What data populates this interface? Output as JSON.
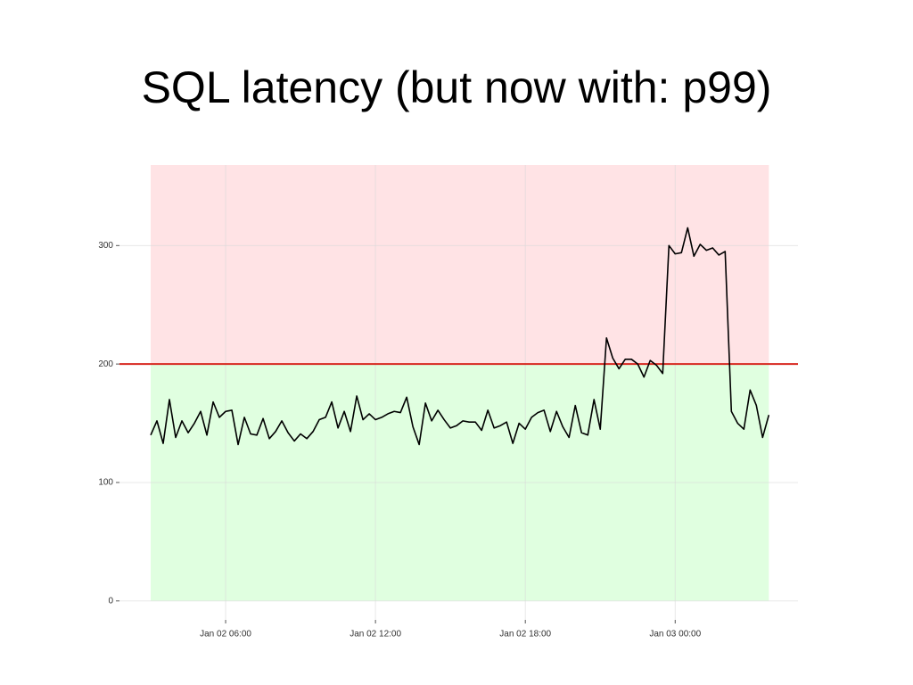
{
  "chart_data": {
    "type": "line",
    "title": "SQL latency (but now with: p99)",
    "x": [
      "Jan 02 03:00",
      "Jan 02 03:15",
      "Jan 02 03:30",
      "Jan 02 03:45",
      "Jan 02 04:00",
      "Jan 02 04:15",
      "Jan 02 04:30",
      "Jan 02 04:45",
      "Jan 02 05:00",
      "Jan 02 05:15",
      "Jan 02 05:30",
      "Jan 02 05:45",
      "Jan 02 06:00",
      "Jan 02 06:15",
      "Jan 02 06:30",
      "Jan 02 06:45",
      "Jan 02 07:00",
      "Jan 02 07:15",
      "Jan 02 07:30",
      "Jan 02 07:45",
      "Jan 02 08:00",
      "Jan 02 08:15",
      "Jan 02 08:30",
      "Jan 02 08:45",
      "Jan 02 09:00",
      "Jan 02 09:15",
      "Jan 02 09:30",
      "Jan 02 09:45",
      "Jan 02 10:00",
      "Jan 02 10:15",
      "Jan 02 10:30",
      "Jan 02 10:45",
      "Jan 02 11:00",
      "Jan 02 11:15",
      "Jan 02 11:30",
      "Jan 02 11:45",
      "Jan 02 12:00",
      "Jan 02 12:15",
      "Jan 02 12:30",
      "Jan 02 12:45",
      "Jan 02 13:00",
      "Jan 02 13:15",
      "Jan 02 13:30",
      "Jan 02 13:45",
      "Jan 02 14:00",
      "Jan 02 14:15",
      "Jan 02 14:30",
      "Jan 02 14:45",
      "Jan 02 15:00",
      "Jan 02 15:15",
      "Jan 02 15:30",
      "Jan 02 15:45",
      "Jan 02 16:00",
      "Jan 02 16:15",
      "Jan 02 16:30",
      "Jan 02 16:45",
      "Jan 02 17:00",
      "Jan 02 17:15",
      "Jan 02 17:30",
      "Jan 02 17:45",
      "Jan 02 18:00",
      "Jan 02 18:15",
      "Jan 02 18:30",
      "Jan 02 18:45",
      "Jan 02 19:00",
      "Jan 02 19:15",
      "Jan 02 19:30",
      "Jan 02 19:45",
      "Jan 02 20:00",
      "Jan 02 20:15",
      "Jan 02 20:30",
      "Jan 02 20:45",
      "Jan 02 21:00",
      "Jan 02 21:15",
      "Jan 02 21:30",
      "Jan 02 21:45",
      "Jan 02 22:00",
      "Jan 02 22:15",
      "Jan 02 22:30",
      "Jan 02 22:45",
      "Jan 02 23:00",
      "Jan 02 23:15",
      "Jan 02 23:30",
      "Jan 02 23:45",
      "Jan 03 00:00",
      "Jan 03 00:15",
      "Jan 03 00:30",
      "Jan 03 00:45",
      "Jan 03 01:00",
      "Jan 03 01:15",
      "Jan 03 01:30",
      "Jan 03 01:45",
      "Jan 03 02:00",
      "Jan 03 02:15",
      "Jan 03 02:30",
      "Jan 03 02:45",
      "Jan 03 03:00",
      "Jan 03 03:15",
      "Jan 03 03:30",
      "Jan 03 03:45"
    ],
    "values": [
      140,
      152,
      133,
      170,
      138,
      152,
      142,
      150,
      160,
      140,
      168,
      155,
      160,
      161,
      132,
      155,
      141,
      140,
      154,
      137,
      143,
      152,
      142,
      135,
      141,
      137,
      143,
      153,
      155,
      168,
      146,
      160,
      143,
      173,
      153,
      158,
      153,
      155,
      158,
      160,
      159,
      172,
      147,
      132,
      167,
      152,
      161,
      153,
      146,
      148,
      152,
      151,
      151,
      144,
      161,
      146,
      148,
      151,
      133,
      150,
      145,
      155,
      159,
      161,
      143,
      160,
      147,
      138,
      165,
      142,
      140,
      170,
      145,
      222,
      205,
      196,
      204,
      204,
      200,
      189,
      203,
      199,
      192,
      300,
      293,
      294,
      315,
      291,
      301,
      296,
      298,
      292,
      295,
      160,
      150,
      145,
      178,
      165,
      138,
      157
    ],
    "color": "#000000",
    "threshold": 200,
    "threshold_color": "#d7261e",
    "above_color": "#ffe3e5",
    "below_color": "#e0ffe0",
    "xlim": [
      "Jan 02 01:45",
      "Jan 03 04:55"
    ],
    "xticks": [
      "Jan 02 06:00",
      "Jan 02 12:00",
      "Jan 02 18:00",
      "Jan 03 00:00"
    ],
    "ylim": [
      -16,
      368
    ],
    "yticks": [
      0,
      100,
      200,
      300
    ],
    "grid": true
  }
}
